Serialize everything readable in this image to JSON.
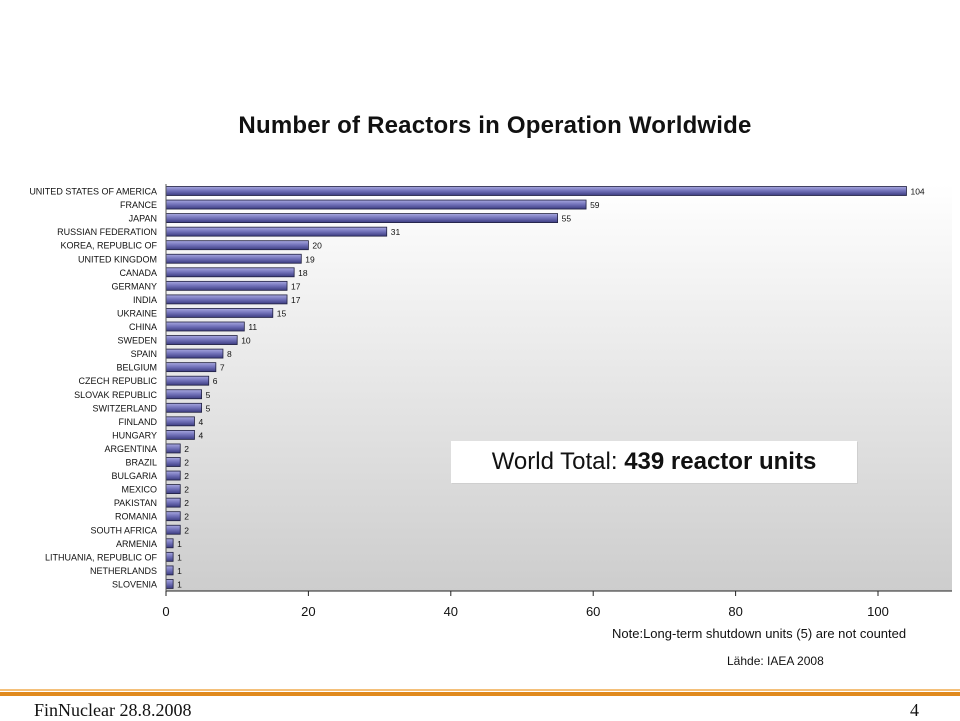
{
  "chart_data": {
    "type": "bar",
    "orientation": "horizontal",
    "title": "Number of Reactors in Operation Worldwide",
    "categories": [
      "UNITED STATES OF AMERICA",
      "FRANCE",
      "JAPAN",
      "RUSSIAN FEDERATION",
      "KOREA, REPUBLIC OF",
      "UNITED KINGDOM",
      "CANADA",
      "GERMANY",
      "INDIA",
      "UKRAINE",
      "CHINA",
      "SWEDEN",
      "SPAIN",
      "BELGIUM",
      "CZECH REPUBLIC",
      "SLOVAK REPUBLIC",
      "SWITZERLAND",
      "FINLAND",
      "HUNGARY",
      "ARGENTINA",
      "BRAZIL",
      "BULGARIA",
      "MEXICO",
      "PAKISTAN",
      "ROMANIA",
      "SOUTH AFRICA",
      "ARMENIA",
      "LITHUANIA, REPUBLIC OF",
      "NETHERLANDS",
      "SLOVENIA"
    ],
    "values": [
      104,
      59,
      55,
      31,
      20,
      19,
      18,
      17,
      17,
      15,
      11,
      10,
      8,
      7,
      6,
      5,
      5,
      4,
      4,
      2,
      2,
      2,
      2,
      2,
      2,
      2,
      1,
      1,
      1,
      1
    ],
    "xlim": [
      0,
      110
    ],
    "xticks": [
      0,
      20,
      40,
      60,
      80,
      100
    ],
    "data_labels": true,
    "legend": "none",
    "grid": false
  },
  "annotation": {
    "label": "World Total:",
    "value": "439",
    "unit": "reactor units"
  },
  "note": "Note:Long-term shutdown units (5) are not counted",
  "source": "Lähde: IAEA 2008",
  "footer": {
    "left": "FinNuclear 28.8.2008",
    "right": "4"
  },
  "colors": {
    "bar": "#7070b8",
    "bar_edge": "#202040",
    "footer_line": "#e08a1e"
  }
}
